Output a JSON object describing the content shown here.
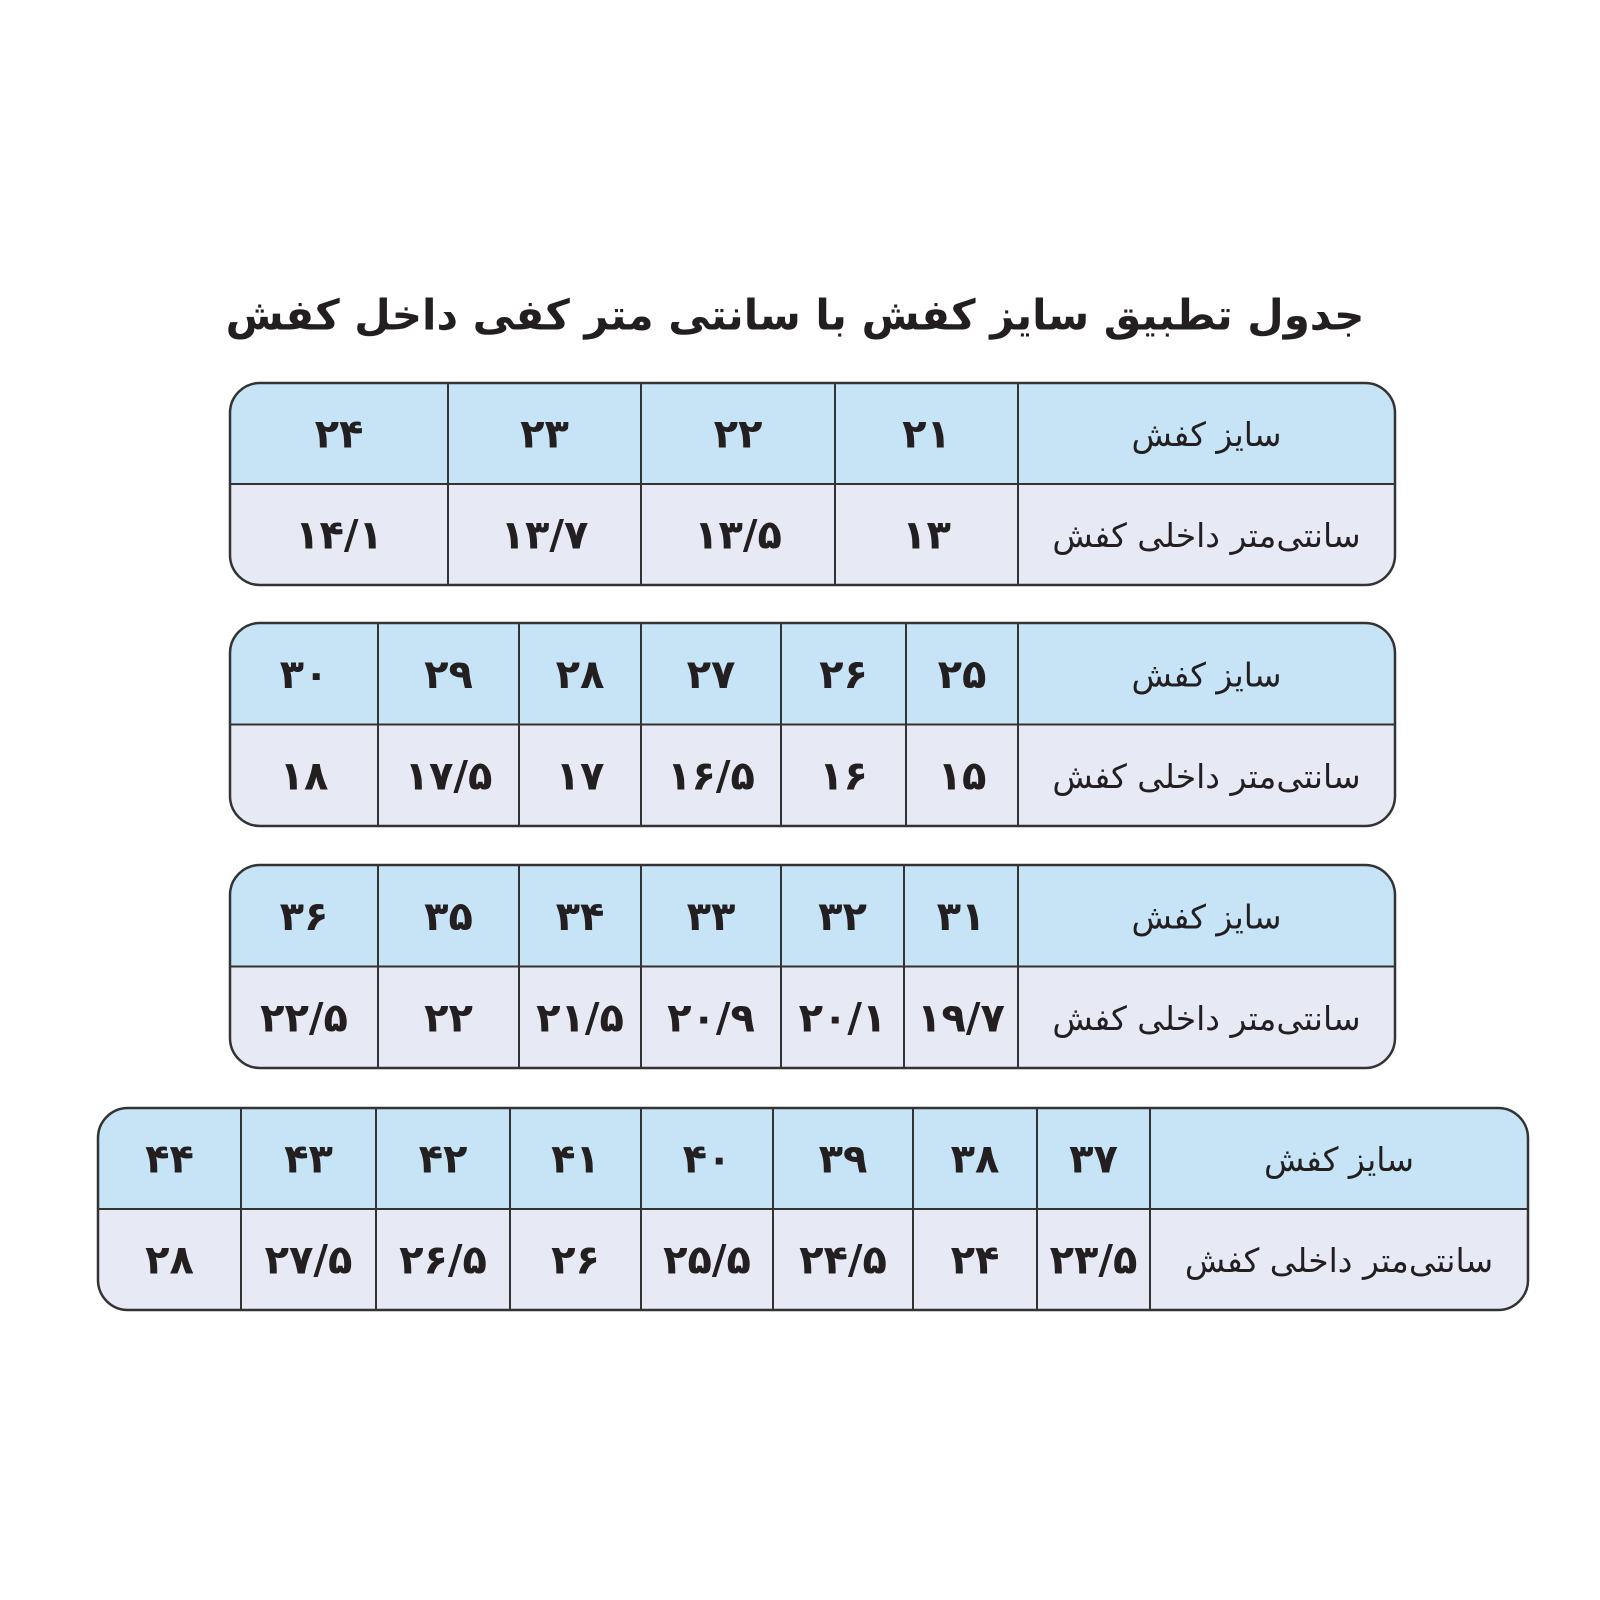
{
  "title": "جدول تطبیق سایز کفش با سانتی متر کفی داخل کفش",
  "tables": [
    {
      "header": [
        "سایز کفش",
        "۲۱",
        "۲۲",
        "۲۳",
        "۲۴"
      ],
      "row": [
        "سانتی‌متر داخلی کفش",
        "۱۳",
        "۱۳/۵",
        "۱۳/۷",
        "۱۴/۱"
      ]
    },
    {
      "header": [
        "سایز کفش",
        "۲۵",
        "۲۶",
        "۲۷",
        "۲۸",
        "۲۹",
        "۳۰"
      ],
      "row": [
        "سانتی‌متر داخلی کفش",
        "۱۵",
        "۱۶",
        "۱۶/۵",
        "۱۷",
        "۱۷/۵",
        "۱۸"
      ]
    },
    {
      "header": [
        "سایز کفش",
        "۳۱",
        "۳۲",
        "۳۳",
        "۳۴",
        "۳۵",
        "۳۶"
      ],
      "row": [
        "سانتی‌متر داخلی کفش",
        "۱۹/۷",
        "۲۰/۱",
        "۲۰/۹",
        "۲۱/۵",
        "۲۲",
        "۲۲/۵"
      ]
    },
    {
      "header": [
        "سایز کفش",
        "۳۷",
        "۳۸",
        "۳۹",
        "۴۰",
        "۴۱",
        "۴۲",
        "۴۳",
        "۴۴"
      ],
      "row": [
        "سانتی‌متر داخلی کفش",
        "۲۳/۵",
        "۲۴",
        "۲۴/۵",
        "۲۵/۵",
        "۲۶",
        "۲۶/۵",
        "۲۷/۵",
        "۲۸"
      ]
    }
  ]
}
